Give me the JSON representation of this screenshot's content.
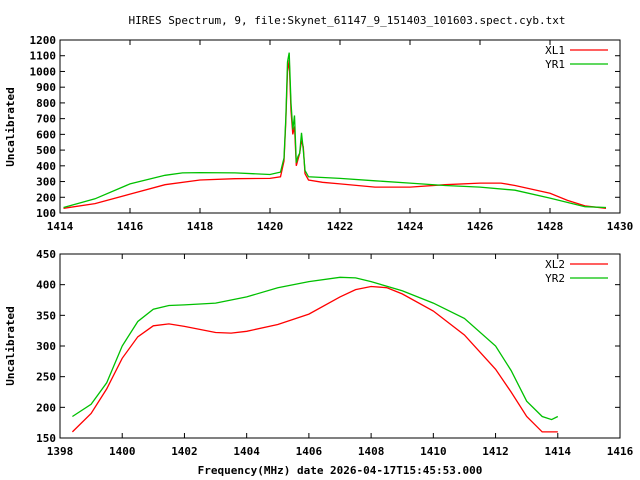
{
  "title": "HIRES Spectrum, 9, file:Skynet_61147_9_151403_101603.spect.cyb.txt",
  "colors": {
    "red": "#ff0000",
    "green": "#00c000"
  },
  "chart_data": [
    {
      "type": "line",
      "xlabel": "",
      "ylabel": "Uncalibrated",
      "xlim": [
        1414,
        1430
      ],
      "ylim": [
        100,
        1200
      ],
      "xticks": [
        "1414",
        "1416",
        "1418",
        "1420",
        "1422",
        "1424",
        "1426",
        "1428",
        "1430"
      ],
      "yticks": [
        "100",
        "200",
        "300",
        "400",
        "500",
        "600",
        "700",
        "800",
        "900",
        "1000",
        "1100",
        "1200"
      ],
      "legend": "top-right",
      "series": [
        {
          "name": "XL1",
          "color": "red",
          "x": [
            1414.1,
            1415,
            1416,
            1417,
            1418,
            1419,
            1420,
            1420.3,
            1420.4,
            1420.45,
            1420.5,
            1420.55,
            1420.6,
            1420.65,
            1420.7,
            1420.75,
            1420.8,
            1420.85,
            1420.9,
            1420.95,
            1421.0,
            1421.1,
            1421.5,
            1422,
            1423,
            1424,
            1425,
            1426,
            1426.6,
            1427,
            1428,
            1428.5,
            1429,
            1429.6
          ],
          "y": [
            130,
            160,
            220,
            280,
            310,
            318,
            320,
            330,
            430,
            680,
            1000,
            1070,
            750,
            600,
            650,
            400,
            440,
            480,
            560,
            520,
            350,
            310,
            295,
            285,
            265,
            265,
            280,
            290,
            290,
            275,
            225,
            180,
            145,
            130
          ]
        },
        {
          "name": "YR1",
          "color": "green",
          "x": [
            1414.1,
            1415,
            1416,
            1417,
            1417.5,
            1418,
            1419,
            1419.5,
            1420,
            1420.3,
            1420.4,
            1420.45,
            1420.5,
            1420.55,
            1420.6,
            1420.65,
            1420.7,
            1420.75,
            1420.8,
            1420.85,
            1420.9,
            1420.95,
            1421.0,
            1421.1,
            1422,
            1423,
            1424,
            1425,
            1426,
            1427,
            1428,
            1429,
            1429.6
          ],
          "y": [
            135,
            190,
            285,
            340,
            355,
            357,
            355,
            350,
            345,
            360,
            450,
            700,
            1060,
            1120,
            800,
            630,
            720,
            420,
            460,
            480,
            610,
            500,
            370,
            330,
            320,
            305,
            290,
            275,
            265,
            245,
            195,
            140,
            135
          ]
        }
      ]
    },
    {
      "type": "line",
      "xlabel": "Frequency(MHz) date 2026-04-17T15:45:53.000",
      "ylabel": "Uncalibrated",
      "xlim": [
        1398,
        1416
      ],
      "ylim": [
        150,
        450
      ],
      "xticks": [
        "1398",
        "1400",
        "1402",
        "1404",
        "1406",
        "1408",
        "1410",
        "1412",
        "1414",
        "1416"
      ],
      "yticks": [
        "150",
        "200",
        "250",
        "300",
        "350",
        "400",
        "450"
      ],
      "legend": "top-right",
      "series": [
        {
          "name": "XL2",
          "color": "red",
          "x": [
            1398.4,
            1399,
            1399.5,
            1400,
            1400.5,
            1401,
            1401.5,
            1402,
            1403,
            1403.5,
            1404,
            1405,
            1406,
            1407,
            1407.5,
            1408,
            1408.5,
            1409,
            1410,
            1411,
            1412,
            1412.5,
            1413,
            1413.5,
            1414
          ],
          "y": [
            160,
            190,
            230,
            280,
            315,
            333,
            336,
            332,
            322,
            321,
            324,
            335,
            352,
            380,
            392,
            397,
            395,
            385,
            357,
            318,
            262,
            225,
            185,
            160,
            160
          ]
        },
        {
          "name": "YR2",
          "color": "green",
          "x": [
            1398.4,
            1399,
            1399.5,
            1400,
            1400.5,
            1401,
            1401.5,
            1402,
            1403,
            1404,
            1405,
            1406,
            1407,
            1407.5,
            1408,
            1409,
            1410,
            1411,
            1412,
            1412.5,
            1413,
            1413.5,
            1413.8,
            1414
          ],
          "y": [
            185,
            205,
            240,
            300,
            340,
            360,
            366,
            367,
            370,
            380,
            395,
            405,
            412,
            411,
            405,
            390,
            370,
            345,
            300,
            260,
            210,
            185,
            180,
            185
          ]
        }
      ]
    }
  ]
}
